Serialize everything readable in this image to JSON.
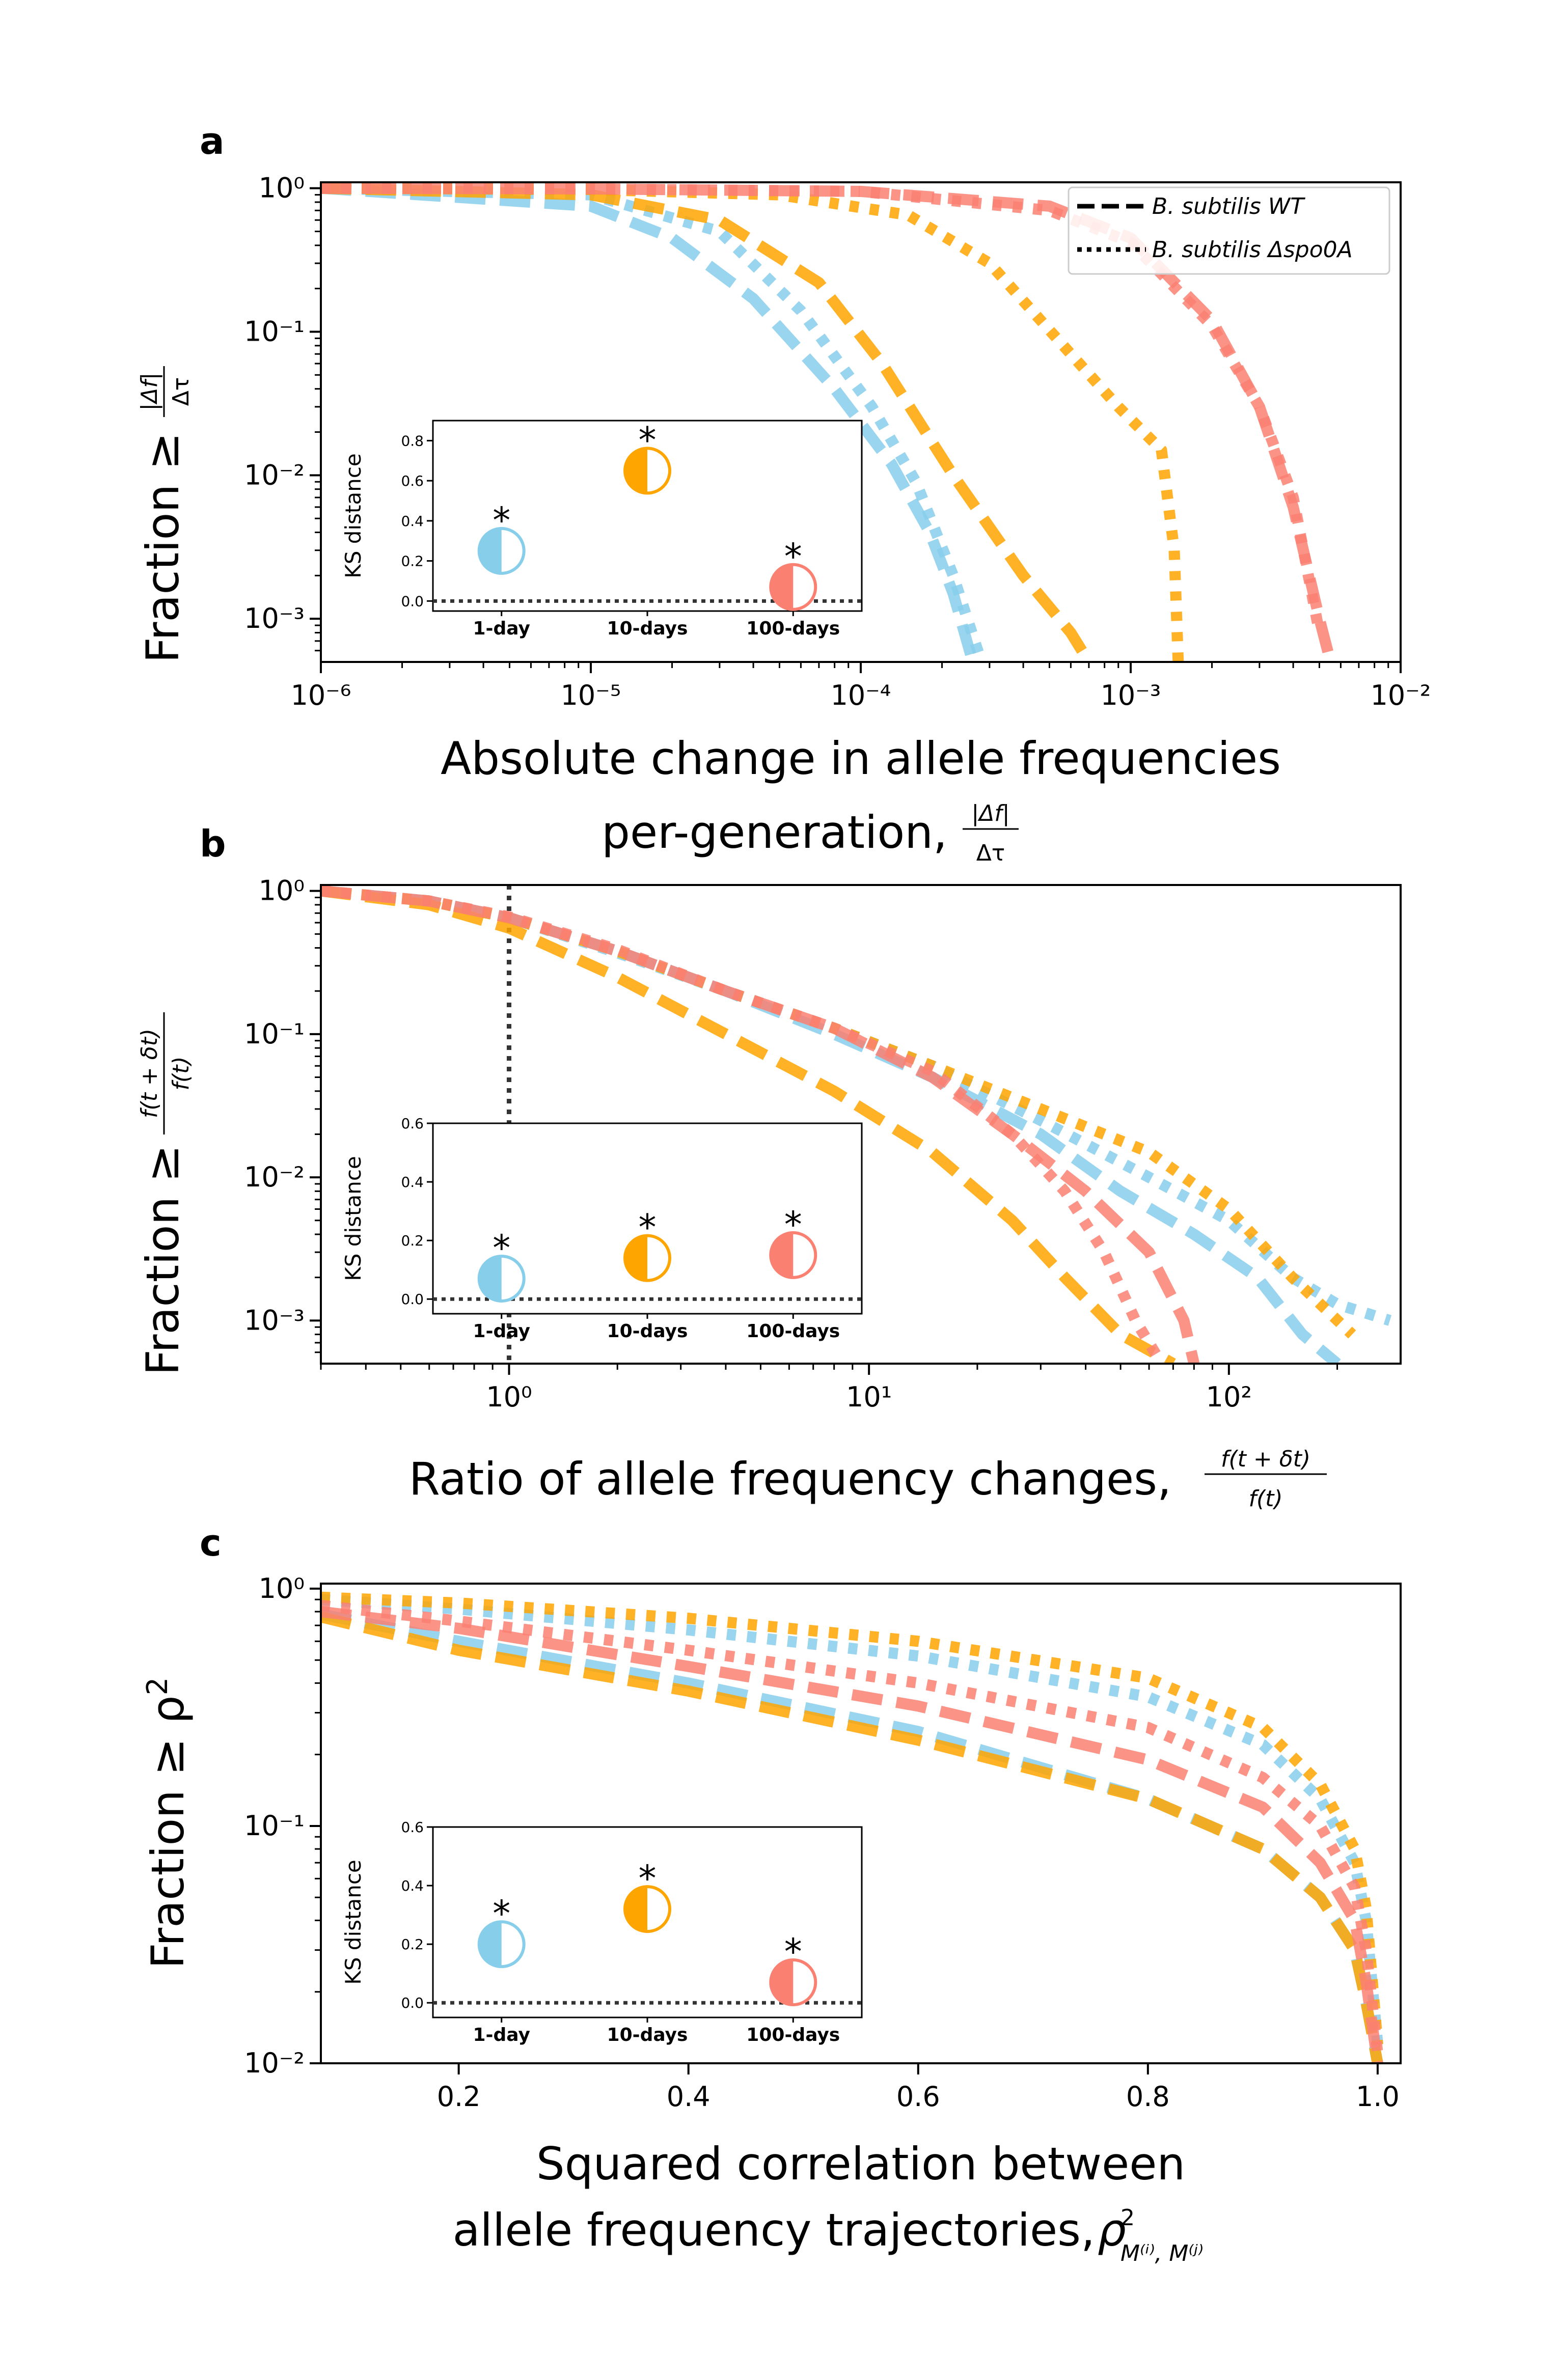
{
  "colors": {
    "d1": "#87ceeb",
    "d10": "#ffa500",
    "d100": "#fa8072",
    "axis": "#000000",
    "baseline": "#333333"
  },
  "legend": {
    "wt": "B. subtilis WT",
    "spo_prefix": "B. subtilis",
    "spo_suffix": "Δspo0A"
  },
  "chart_data": [
    {
      "panel": "a",
      "type": "line",
      "xscale": "log",
      "yscale": "log",
      "xlim": [
        1e-06,
        0.01
      ],
      "ylim": [
        0.0005,
        1.1
      ],
      "xticks": [
        {
          "v": 1e-06,
          "label": "10⁻⁶"
        },
        {
          "v": 1e-05,
          "label": "10⁻⁵"
        },
        {
          "v": 0.0001,
          "label": "10⁻⁴"
        },
        {
          "v": 0.001,
          "label": "10⁻³"
        },
        {
          "v": 0.01,
          "label": "10⁻²"
        }
      ],
      "yticks": [
        {
          "v": 1,
          "label": "10⁰"
        },
        {
          "v": 0.1,
          "label": "10⁻¹"
        },
        {
          "v": 0.01,
          "label": "10⁻²"
        },
        {
          "v": 0.001,
          "label": "10⁻³"
        }
      ],
      "ylabel_prefix": "Fraction  ≥",
      "ylabel_num": "|Δf|",
      "ylabel_den": "Δτ",
      "xlabel_line1": "Absolute change in allele frequencies",
      "xlabel_line2_prefix": "per-generation,",
      "xlabel_num": "|Δf|",
      "xlabel_den": "Δτ",
      "legend_loc": "upper right",
      "series": [
        {
          "color": "d1",
          "style": "dash",
          "x": [
            1e-06,
            1e-05,
            2e-05,
            4e-05,
            8e-05,
            0.00013,
            0.00018,
            0.00022,
            0.00026
          ],
          "y": [
            1.0,
            0.75,
            0.45,
            0.17,
            0.04,
            0.012,
            0.004,
            0.0015,
            0.0005
          ]
        },
        {
          "color": "d1",
          "style": "dot",
          "x": [
            1e-06,
            1e-05,
            3e-05,
            6e-05,
            0.00011,
            0.00016,
            0.00022,
            0.00028
          ],
          "y": [
            1.0,
            0.9,
            0.5,
            0.14,
            0.03,
            0.009,
            0.002,
            0.0005
          ]
        },
        {
          "color": "d10",
          "style": "dash",
          "x": [
            1e-06,
            1e-05,
            3e-05,
            7e-05,
            0.00012,
            0.00022,
            0.0004,
            0.0006,
            0.0007
          ],
          "y": [
            1.0,
            0.9,
            0.6,
            0.22,
            0.06,
            0.01,
            0.002,
            0.0008,
            0.0005
          ]
        },
        {
          "color": "d10",
          "style": "dot",
          "x": [
            1e-06,
            1e-05,
            5e-05,
            0.00015,
            0.0003,
            0.0006,
            0.0009,
            0.0013,
            0.00145,
            0.0015
          ],
          "y": [
            1.0,
            0.98,
            0.9,
            0.65,
            0.3,
            0.07,
            0.03,
            0.015,
            0.003,
            0.0005
          ]
        },
        {
          "color": "d100",
          "style": "dash",
          "x": [
            1e-06,
            1e-05,
            0.0001,
            0.0005,
            0.001,
            0.002,
            0.003,
            0.004,
            0.005,
            0.0055
          ],
          "y": [
            1.0,
            0.99,
            0.95,
            0.75,
            0.45,
            0.12,
            0.03,
            0.006,
            0.001,
            0.0005
          ]
        },
        {
          "color": "d100",
          "style": "dot",
          "x": [
            1e-06,
            1e-05,
            0.0001,
            0.0005,
            0.001,
            0.002,
            0.003,
            0.004,
            0.005
          ],
          "y": [
            1.0,
            0.99,
            0.95,
            0.7,
            0.42,
            0.11,
            0.03,
            0.007,
            0.0008
          ]
        }
      ],
      "inset": {
        "ylabel": "KS distance",
        "ylim": [
          -0.05,
          0.9
        ],
        "yticks": [
          {
            "v": 0.0,
            "label": "0.0"
          },
          {
            "v": 0.2,
            "label": "0.2"
          },
          {
            "v": 0.4,
            "label": "0.4"
          },
          {
            "v": 0.6,
            "label": "0.6"
          },
          {
            "v": 0.8,
            "label": "0.8"
          }
        ],
        "categories": [
          "1-day",
          "10-days",
          "100-days"
        ],
        "values": [
          0.25,
          0.65,
          0.07
        ],
        "colors": [
          "d1",
          "d10",
          "d100"
        ],
        "marks": [
          "*",
          "*",
          "*"
        ]
      }
    },
    {
      "panel": "b",
      "type": "line",
      "xscale": "log",
      "yscale": "log",
      "xlim": [
        0.3,
        300
      ],
      "ylim": [
        0.0005,
        1.1
      ],
      "xticks": [
        {
          "v": 1,
          "label": "10⁰"
        },
        {
          "v": 10,
          "label": "10¹"
        },
        {
          "v": 100,
          "label": "10²"
        }
      ],
      "yticks": [
        {
          "v": 1,
          "label": "10⁰"
        },
        {
          "v": 0.1,
          "label": "10⁻¹"
        },
        {
          "v": 0.01,
          "label": "10⁻²"
        },
        {
          "v": 0.001,
          "label": "10⁻³"
        }
      ],
      "vline_x": 1,
      "ylabel_prefix": "Fraction  ≥",
      "ylabel_num": "f(t + δt)",
      "ylabel_den": "f(t)",
      "xlabel_prefix": "Ratio of allele frequency changes,",
      "xlabel_num": "f(t + δt)",
      "xlabel_den": "f(t)",
      "series": [
        {
          "color": "d1",
          "style": "dash",
          "x": [
            0.3,
            0.6,
            1,
            2,
            4,
            8,
            15,
            30,
            50,
            80,
            120,
            160,
            200
          ],
          "y": [
            1.0,
            0.85,
            0.65,
            0.38,
            0.2,
            0.1,
            0.05,
            0.02,
            0.008,
            0.004,
            0.002,
            0.0008,
            0.0005
          ]
        },
        {
          "color": "d1",
          "style": "dot",
          "x": [
            0.3,
            0.6,
            1,
            2,
            4,
            8,
            15,
            30,
            60,
            100,
            150,
            200,
            280
          ],
          "y": [
            1.0,
            0.85,
            0.65,
            0.37,
            0.2,
            0.11,
            0.06,
            0.025,
            0.01,
            0.005,
            0.002,
            0.0013,
            0.001
          ]
        },
        {
          "color": "d10",
          "style": "dash",
          "x": [
            0.3,
            0.6,
            1,
            2,
            4,
            8,
            15,
            25,
            35,
            50,
            70
          ],
          "y": [
            1.0,
            0.8,
            0.55,
            0.25,
            0.1,
            0.04,
            0.015,
            0.005,
            0.002,
            0.0008,
            0.0005
          ]
        },
        {
          "color": "d10",
          "style": "dot",
          "x": [
            0.3,
            0.6,
            1,
            2,
            4,
            8,
            15,
            30,
            60,
            100,
            150,
            220
          ],
          "y": [
            1.0,
            0.85,
            0.65,
            0.38,
            0.2,
            0.11,
            0.06,
            0.03,
            0.015,
            0.006,
            0.002,
            0.0008
          ]
        },
        {
          "color": "d100",
          "style": "dash",
          "x": [
            0.3,
            0.6,
            1,
            2,
            4,
            8,
            15,
            25,
            40,
            60,
            75,
            80
          ],
          "y": [
            1.0,
            0.85,
            0.65,
            0.38,
            0.2,
            0.11,
            0.05,
            0.02,
            0.008,
            0.003,
            0.001,
            0.0005
          ]
        },
        {
          "color": "d100",
          "style": "dot",
          "x": [
            0.3,
            0.6,
            1,
            2,
            4,
            8,
            15,
            25,
            35,
            45,
            55,
            65
          ],
          "y": [
            1.0,
            0.85,
            0.66,
            0.39,
            0.2,
            0.11,
            0.055,
            0.02,
            0.008,
            0.003,
            0.001,
            0.0005
          ]
        }
      ],
      "inset": {
        "ylabel": "KS distance",
        "ylim": [
          -0.05,
          0.6
        ],
        "yticks": [
          {
            "v": 0.0,
            "label": "0.0"
          },
          {
            "v": 0.2,
            "label": "0.2"
          },
          {
            "v": 0.4,
            "label": "0.4"
          },
          {
            "v": 0.6,
            "label": "0.6"
          }
        ],
        "categories": [
          "1-day",
          "10-days",
          "100-days"
        ],
        "values": [
          0.07,
          0.14,
          0.15
        ],
        "colors": [
          "d1",
          "d10",
          "d100"
        ],
        "marks": [
          "*",
          "*",
          "*"
        ]
      }
    },
    {
      "panel": "c",
      "type": "line",
      "xscale": "linear",
      "yscale": "log",
      "xlim": [
        0.08,
        1.02
      ],
      "ylim": [
        0.01,
        1.05
      ],
      "xticks": [
        {
          "v": 0.2,
          "label": "0.2"
        },
        {
          "v": 0.4,
          "label": "0.4"
        },
        {
          "v": 0.6,
          "label": "0.6"
        },
        {
          "v": 0.8,
          "label": "0.8"
        },
        {
          "v": 1.0,
          "label": "1.0"
        }
      ],
      "yticks": [
        {
          "v": 1,
          "label": "10⁰"
        },
        {
          "v": 0.1,
          "label": "10⁻¹"
        },
        {
          "v": 0.01,
          "label": "10⁻²"
        }
      ],
      "ylabel_prefix": "Fraction ",
      "ylabel_rel": "≥ ρ",
      "ylabel_sup": "2",
      "xlabel_line1": "Squared correlation between",
      "xlabel_line2_prefix": "allele frequency trajectories, ",
      "xlabel_rho": "ρ",
      "xlabel_rho_sup": "2",
      "xlabel_rho_sub": "M⁽ⁱ⁾, M⁽ʲ⁾",
      "series": [
        {
          "color": "d1",
          "style": "dash",
          "x": [
            0.08,
            0.2,
            0.4,
            0.6,
            0.8,
            0.9,
            0.95,
            0.98,
            0.99,
            1.0
          ],
          "y": [
            0.78,
            0.6,
            0.4,
            0.25,
            0.13,
            0.08,
            0.05,
            0.03,
            0.018,
            0.01
          ]
        },
        {
          "color": "d1",
          "style": "dot",
          "x": [
            0.08,
            0.2,
            0.4,
            0.6,
            0.8,
            0.9,
            0.95,
            0.98,
            0.99,
            1.0
          ],
          "y": [
            0.9,
            0.82,
            0.67,
            0.52,
            0.35,
            0.22,
            0.13,
            0.07,
            0.04,
            0.012
          ]
        },
        {
          "color": "d10",
          "style": "dash",
          "x": [
            0.08,
            0.2,
            0.4,
            0.6,
            0.8,
            0.9,
            0.95,
            0.98,
            0.99,
            1.0
          ],
          "y": [
            0.76,
            0.55,
            0.37,
            0.23,
            0.13,
            0.08,
            0.05,
            0.03,
            0.018,
            0.01
          ]
        },
        {
          "color": "d10",
          "style": "dot",
          "x": [
            0.08,
            0.2,
            0.4,
            0.6,
            0.8,
            0.9,
            0.95,
            0.98,
            0.99,
            1.0
          ],
          "y": [
            0.92,
            0.87,
            0.75,
            0.6,
            0.42,
            0.26,
            0.15,
            0.08,
            0.045,
            0.012
          ]
        },
        {
          "color": "d100",
          "style": "dash",
          "x": [
            0.08,
            0.2,
            0.4,
            0.6,
            0.8,
            0.9,
            0.95,
            0.98,
            0.99,
            1.0
          ],
          "y": [
            0.8,
            0.68,
            0.47,
            0.32,
            0.19,
            0.12,
            0.07,
            0.04,
            0.022,
            0.01
          ]
        },
        {
          "color": "d100",
          "style": "dot",
          "x": [
            0.08,
            0.2,
            0.4,
            0.6,
            0.8,
            0.9,
            0.95,
            0.98,
            0.99,
            1.0
          ],
          "y": [
            0.85,
            0.73,
            0.55,
            0.4,
            0.26,
            0.16,
            0.1,
            0.055,
            0.03,
            0.011
          ]
        }
      ],
      "inset": {
        "ylabel": "KS distance",
        "ylim": [
          -0.05,
          0.6
        ],
        "yticks": [
          {
            "v": 0.0,
            "label": "0.0"
          },
          {
            "v": 0.2,
            "label": "0.2"
          },
          {
            "v": 0.4,
            "label": "0.4"
          },
          {
            "v": 0.6,
            "label": "0.6"
          }
        ],
        "categories": [
          "1-day",
          "10-days",
          "100-days"
        ],
        "values": [
          0.2,
          0.32,
          0.07
        ],
        "colors": [
          "d1",
          "d10",
          "d100"
        ],
        "marks": [
          "*",
          "*",
          "*"
        ]
      }
    }
  ]
}
